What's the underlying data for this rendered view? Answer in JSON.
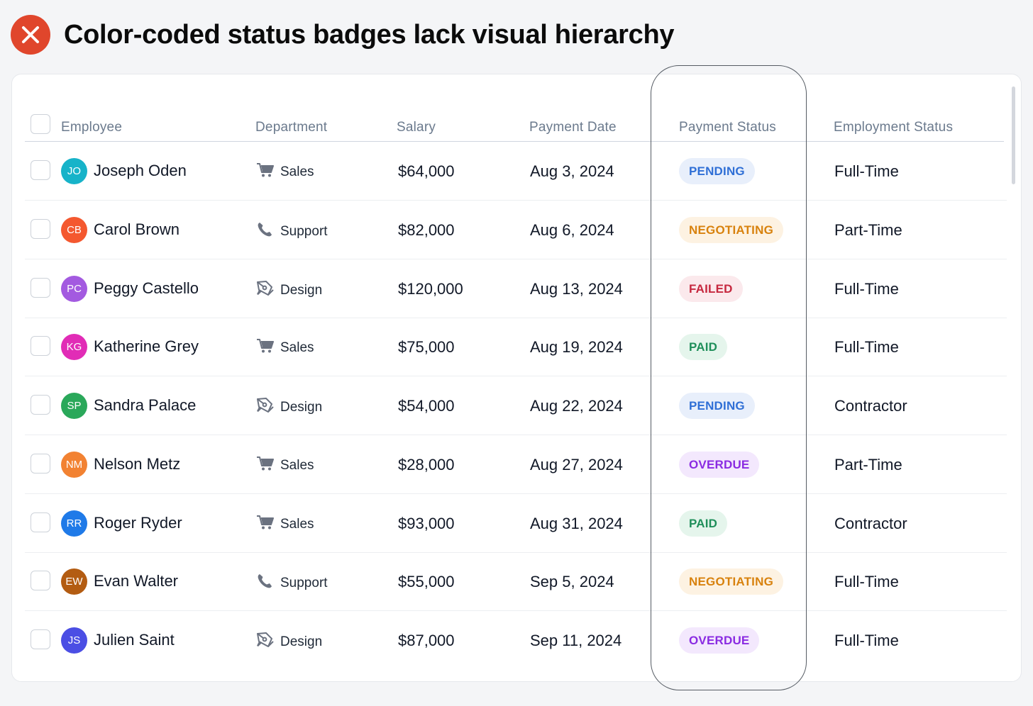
{
  "header": {
    "title": "Color-coded status badges lack visual hierarchy",
    "icon": "close-icon",
    "icon_color": "#e0462c"
  },
  "table": {
    "columns": [
      "Employee",
      "Department",
      "Salary",
      "Payment Date",
      "Payment Status",
      "Employment Status"
    ],
    "rows": [
      {
        "initials": "JO",
        "avatar_color": "#17b3c9",
        "name": "Joseph Oden",
        "dept_icon": "cart-icon",
        "dept": "Sales",
        "salary": "$64,000",
        "date": "Aug 3, 2024",
        "status": "PENDING",
        "status_fg": "#2f6fd6",
        "status_bg": "#e8effb",
        "employment": "Full-Time"
      },
      {
        "initials": "CB",
        "avatar_color": "#f4582f",
        "name": "Carol Brown",
        "dept_icon": "phone-icon",
        "dept": "Support",
        "salary": "$82,000",
        "date": "Aug 6, 2024",
        "status": "NEGOTIATING",
        "status_fg": "#d8820e",
        "status_bg": "#fdf2e2",
        "employment": "Part-Time"
      },
      {
        "initials": "PC",
        "avatar_color": "#a35ae0",
        "name": "Peggy Castello",
        "dept_icon": "pen-tool-icon",
        "dept": "Design",
        "salary": "$120,000",
        "date": "Aug 13, 2024",
        "status": "FAILED",
        "status_fg": "#c6283f",
        "status_bg": "#fbe9ec",
        "employment": "Full-Time"
      },
      {
        "initials": "KG",
        "avatar_color": "#e12cb6",
        "name": "Katherine Grey",
        "dept_icon": "cart-icon",
        "dept": "Sales",
        "salary": "$75,000",
        "date": "Aug 19, 2024",
        "status": "PAID",
        "status_fg": "#1f8f5a",
        "status_bg": "#e5f5ec",
        "employment": "Full-Time"
      },
      {
        "initials": "SP",
        "avatar_color": "#2aa85a",
        "name": "Sandra Palace",
        "dept_icon": "pen-tool-icon",
        "dept": "Design",
        "salary": "$54,000",
        "date": "Aug 22, 2024",
        "status": "PENDING",
        "status_fg": "#2f6fd6",
        "status_bg": "#e8effb",
        "employment": "Contractor"
      },
      {
        "initials": "NM",
        "avatar_color": "#f28232",
        "name": "Nelson Metz",
        "dept_icon": "cart-icon",
        "dept": "Sales",
        "salary": "$28,000",
        "date": "Aug 27, 2024",
        "status": "OVERDUE",
        "status_fg": "#8a2be2",
        "status_bg": "#f3e8fd",
        "employment": "Part-Time"
      },
      {
        "initials": "RR",
        "avatar_color": "#1f7ae8",
        "name": "Roger Ryder",
        "dept_icon": "cart-icon",
        "dept": "Sales",
        "salary": "$93,000",
        "date": "Aug 31, 2024",
        "status": "PAID",
        "status_fg": "#1f8f5a",
        "status_bg": "#e5f5ec",
        "employment": "Contractor"
      },
      {
        "initials": "EW",
        "avatar_color": "#b35c12",
        "name": "Evan Walter",
        "dept_icon": "phone-icon",
        "dept": "Support",
        "salary": "$55,000",
        "date": "Sep 5, 2024",
        "status": "NEGOTIATING",
        "status_fg": "#d8820e",
        "status_bg": "#fdf2e2",
        "employment": "Full-Time"
      },
      {
        "initials": "JS",
        "avatar_color": "#4b4ee4",
        "name": "Julien Saint",
        "dept_icon": "pen-tool-icon",
        "dept": "Design",
        "salary": "$87,000",
        "date": "Sep 11, 2024",
        "status": "OVERDUE",
        "status_fg": "#8a2be2",
        "status_bg": "#f3e8fd",
        "employment": "Full-Time"
      }
    ]
  }
}
